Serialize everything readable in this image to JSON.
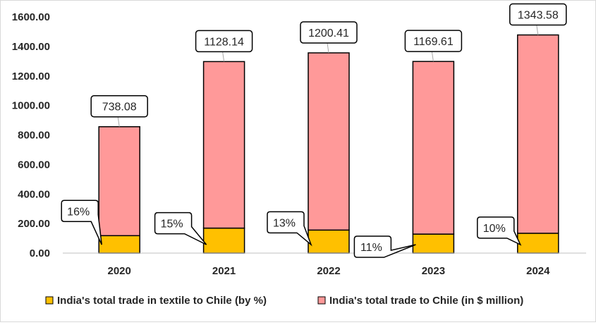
{
  "chart_data": {
    "type": "bar",
    "stacked": true,
    "categories": [
      "2020",
      "2021",
      "2022",
      "2023",
      "2024"
    ],
    "series": [
      {
        "name": "India's total trade in textile to Chile (by %)",
        "color": "#ffc000",
        "values": [
          118.09,
          169.22,
          156.05,
          128.66,
          134.36
        ],
        "labels": [
          "16%",
          "15%",
          "13%",
          "11%",
          "10%"
        ]
      },
      {
        "name": "India's total trade to Chile (in $ million)",
        "color": "#ff9999",
        "values": [
          738.08,
          1128.14,
          1200.41,
          1169.61,
          1343.58
        ],
        "labels": [
          "738.08",
          "1128.14",
          "1200.41",
          "1169.61",
          "1343.58"
        ]
      }
    ],
    "yticks": [
      "0.00",
      "200.00",
      "400.00",
      "600.00",
      "800.00",
      "1000.00",
      "1200.00",
      "1400.00",
      "1600.00"
    ],
    "ylim": [
      0,
      1600
    ],
    "grid": false,
    "legend_position": "bottom"
  }
}
